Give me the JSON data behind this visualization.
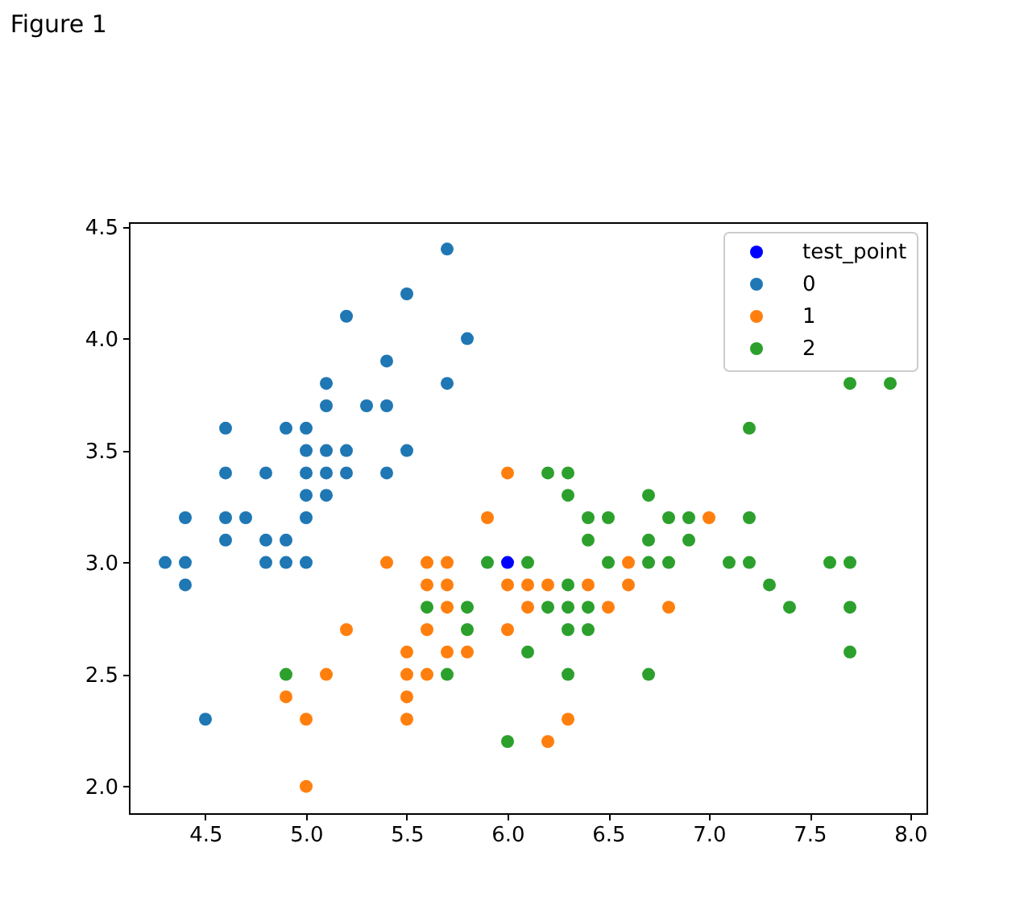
{
  "chart_data": {
    "type": "scatter",
    "title": "Figure 1",
    "xlim": [
      4.12,
      8.08
    ],
    "ylim": [
      1.88,
      4.52
    ],
    "xticks": [
      4.5,
      {
        "value": 5,
        "label": "5.0"
      },
      5.5,
      {
        "value": 6,
        "label": "6.0"
      },
      6.5,
      {
        "value": 7,
        "label": "7.0"
      },
      7.5,
      {
        "value": 8,
        "label": "8.0"
      }
    ],
    "yticks": [
      {
        "value": 2,
        "label": "2.0"
      },
      2.5,
      {
        "value": 3,
        "label": "3.0"
      },
      3.5,
      {
        "value": 4,
        "label": "4.0"
      },
      4.5
    ],
    "grid": false,
    "legend": "top right",
    "marker": "circle",
    "series": [
      {
        "name": "test_point",
        "color": "#0000ff",
        "x": [
          6.0
        ],
        "values": [
          3.0
        ]
      },
      {
        "name": "0",
        "color": "#1f77b4",
        "x": [
          5.1,
          4.9,
          4.7,
          4.6,
          5.0,
          5.4,
          4.6,
          5.0,
          4.4,
          4.9,
          5.4,
          4.8,
          4.8,
          4.3,
          5.8,
          5.7,
          5.7,
          5.1,
          5.4,
          5.1,
          4.6,
          5.1,
          5.2,
          5.2,
          4.8,
          5.2,
          5.5,
          5.0,
          5.5,
          4.9,
          4.4,
          5.1,
          5.0,
          4.5,
          4.4,
          4.6,
          5.3,
          5.0,
          5.0
        ],
        "values": [
          3.5,
          3.0,
          3.2,
          3.1,
          3.6,
          3.9,
          3.4,
          3.4,
          2.9,
          3.1,
          3.7,
          3.4,
          3.0,
          3.0,
          4.0,
          4.4,
          3.8,
          3.8,
          3.4,
          3.7,
          3.6,
          3.3,
          3.5,
          3.4,
          3.1,
          4.1,
          4.2,
          3.2,
          3.5,
          3.6,
          3.0,
          3.4,
          3.5,
          2.3,
          3.2,
          3.2,
          3.7,
          3.3,
          3.0
        ]
      },
      {
        "name": "1",
        "color": "#ff7f0e",
        "x": [
          7.0,
          5.5,
          6.5,
          5.7,
          4.9,
          6.6,
          5.2,
          5.0,
          6.1,
          5.6,
          5.6,
          6.2,
          5.6,
          5.9,
          6.1,
          6.4,
          6.6,
          6.8,
          6.0,
          5.7,
          5.5,
          6.0,
          5.4,
          6.0,
          6.3,
          5.5,
          5.5,
          5.8,
          5.0,
          5.6,
          5.7,
          5.7,
          6.2,
          5.1
        ],
        "values": [
          3.2,
          2.3,
          2.8,
          2.8,
          2.4,
          2.9,
          2.7,
          2.0,
          2.9,
          2.9,
          3.0,
          2.2,
          2.5,
          3.2,
          2.8,
          2.9,
          3.0,
          2.8,
          2.9,
          2.6,
          2.4,
          2.7,
          3.0,
          3.4,
          2.3,
          2.5,
          2.6,
          2.6,
          2.3,
          2.7,
          3.0,
          2.9,
          2.9,
          2.5
        ]
      },
      {
        "name": "2",
        "color": "#2ca02c",
        "x": [
          6.3,
          5.8,
          7.1,
          6.3,
          6.5,
          7.6,
          4.9,
          7.3,
          6.7,
          7.2,
          6.5,
          6.4,
          6.8,
          5.7,
          5.8,
          6.4,
          7.7,
          7.7,
          6.0,
          6.9,
          5.6,
          7.7,
          6.3,
          6.7,
          7.2,
          6.2,
          6.1,
          6.4,
          7.2,
          7.4,
          7.9,
          6.3,
          6.1,
          7.7,
          6.3,
          6.4,
          6.9,
          6.7,
          6.8,
          6.7,
          6.3,
          6.2,
          5.9
        ],
        "values": [
          3.3,
          2.7,
          3.0,
          2.9,
          3.0,
          3.0,
          2.5,
          2.9,
          2.5,
          3.6,
          3.2,
          2.7,
          3.0,
          2.5,
          2.8,
          3.2,
          3.8,
          2.6,
          2.2,
          3.2,
          2.8,
          2.8,
          2.7,
          3.3,
          3.2,
          2.8,
          3.0,
          2.8,
          3.0,
          2.8,
          3.8,
          2.8,
          2.6,
          3.0,
          3.4,
          3.1,
          3.1,
          3.1,
          3.2,
          3.0,
          2.5,
          3.4,
          3.0
        ]
      }
    ]
  }
}
